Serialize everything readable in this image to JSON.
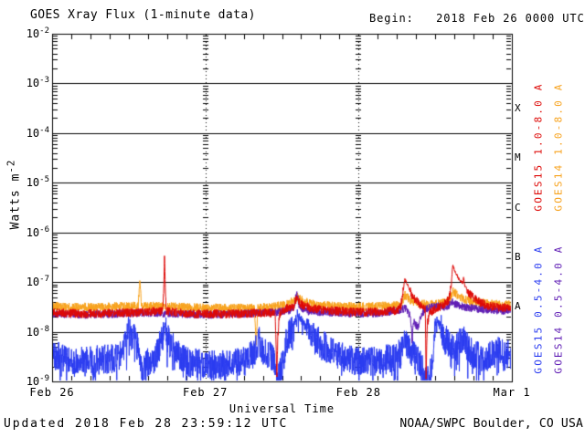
{
  "header": {
    "title": "GOES Xray Flux (1-minute data)",
    "begin_label": "Begin:   2018 Feb 26 0000 UTC"
  },
  "footer": {
    "updated": "Updated 2018 Feb 28 23:59:12 UTC",
    "source": "NOAA/SWPC Boulder, CO USA"
  },
  "chart_data": {
    "type": "line",
    "title": "GOES Xray Flux (1-minute data)",
    "xlabel": "Universal Time",
    "ylabel": "Watts m^-2",
    "ylabel_base": "Watts m",
    "ylabel_sup": "-2",
    "y_scale": "log",
    "ylim": [
      1e-09,
      0.01
    ],
    "y_tick_exponents": [
      -2,
      -3,
      -4,
      -5,
      -6,
      -7,
      -8,
      -9
    ],
    "x_range_hours": [
      0,
      72
    ],
    "x_start": "2018 Feb 26 0000 UTC",
    "x_ticks": [
      {
        "label": "Feb 26",
        "hour": 0
      },
      {
        "label": "Feb 27",
        "hour": 24
      },
      {
        "label": "Feb 28",
        "hour": 48
      },
      {
        "label": "Mar 1",
        "hour": 72
      }
    ],
    "day_gridlines_hours": [
      24,
      48
    ],
    "minor_tick_hours_step": 3,
    "axis_color": "#000000",
    "background": "#ffffff",
    "flare_classes": [
      {
        "label": "X",
        "range": [
          0.0001,
          0.001
        ]
      },
      {
        "label": "M",
        "range": [
          1e-05,
          0.0001
        ]
      },
      {
        "label": "C",
        "range": [
          1e-06,
          1e-05
        ]
      },
      {
        "label": "B",
        "range": [
          1e-07,
          1e-06
        ]
      },
      {
        "label": "A",
        "range": [
          1e-08,
          1e-07
        ]
      }
    ],
    "legend": [
      {
        "label": "GOES15 1.0-8.0 A",
        "color": "#dd0806",
        "column": 0,
        "row": 0
      },
      {
        "label": "GOES14 1.0-8.0 A",
        "color": "#f7a21c",
        "column": 1,
        "row": 0
      },
      {
        "label": "GOES15 0.5-4.0 A",
        "color": "#2a3bf0",
        "column": 0,
        "row": 1
      },
      {
        "label": "GOES14 0.5-4.0 A",
        "color": "#5e1cb4",
        "column": 1,
        "row": 1
      }
    ],
    "series": [
      {
        "name": "GOES14 1.0-8.0 A",
        "color": "#f7a21c",
        "noise_dex": 0.09,
        "noise_damp_above": 7e-08,
        "down_spike_prob": 0,
        "down_spike_dex": 0,
        "keypoints": [
          [
            0,
            3.2e-08
          ],
          [
            7,
            3.1e-08
          ],
          [
            13.5,
            3.3e-08
          ],
          [
            13.62,
            6e-08
          ],
          [
            13.74,
            1.08e-07
          ],
          [
            13.88,
            6e-08
          ],
          [
            14.0,
            3.3e-08
          ],
          [
            18,
            3.2e-08
          ],
          [
            24,
            3e-08
          ],
          [
            29,
            3e-08
          ],
          [
            31.7,
            3e-08
          ],
          [
            31.95,
            5e-09
          ],
          [
            32.2,
            3e-08
          ],
          [
            35,
            3.2e-08
          ],
          [
            37,
            3.6e-08
          ],
          [
            38.5,
            5e-08
          ],
          [
            39.5,
            4e-08
          ],
          [
            41.5,
            3.5e-08
          ],
          [
            45,
            3.2e-08
          ],
          [
            50,
            3.2e-08
          ],
          [
            54.5,
            3.4e-08
          ],
          [
            55.25,
            5.5e-08
          ],
          [
            56.2,
            4.3e-08
          ],
          [
            57.5,
            3.7e-08
          ],
          [
            59,
            3.5e-08
          ],
          [
            61.5,
            3.8e-08
          ],
          [
            62.4,
            4.5e-08
          ],
          [
            62.75,
            6.5e-08
          ],
          [
            63.6,
            5.2e-08
          ],
          [
            65,
            4.3e-08
          ],
          [
            66.5,
            3.9e-08
          ],
          [
            68.5,
            3.6e-08
          ],
          [
            72,
            3.5e-08
          ]
        ]
      },
      {
        "name": "GOES14 0.5-4.0 A",
        "color": "#5e1cb4",
        "noise_dex": 0.08,
        "noise_damp_above": 7e-08,
        "down_spike_prob": 0,
        "down_spike_dex": 0,
        "keypoints": [
          [
            0,
            2.3e-08
          ],
          [
            5,
            2.2e-08
          ],
          [
            10,
            2.3e-08
          ],
          [
            15,
            2.4e-08
          ],
          [
            20,
            2.3e-08
          ],
          [
            25,
            2.2e-08
          ],
          [
            30,
            2.3e-08
          ],
          [
            34,
            2.4e-08
          ],
          [
            37.3,
            2.7e-08
          ],
          [
            37.9,
            3.2e-08
          ],
          [
            38.3,
            6.2e-08
          ],
          [
            38.75,
            3.2e-08
          ],
          [
            40,
            2.6e-08
          ],
          [
            44,
            2.4e-08
          ],
          [
            48,
            2.3e-08
          ],
          [
            52,
            2.4e-08
          ],
          [
            54.8,
            2.8e-08
          ],
          [
            55.4,
            3.1e-08
          ],
          [
            55.9,
            2.3e-08
          ],
          [
            56.2,
            1.6e-08
          ],
          [
            56.38,
            6e-09
          ],
          [
            56.6,
            1.7e-08
          ],
          [
            57.0,
            1.35e-08
          ],
          [
            57.3,
            1.3e-08
          ],
          [
            57.7,
            1.9e-08
          ],
          [
            58.3,
            2.7e-08
          ],
          [
            59.2,
            3.2e-08
          ],
          [
            60.5,
            3.3e-08
          ],
          [
            61.8,
            3.1e-08
          ],
          [
            62.7,
            3.9e-08
          ],
          [
            63.8,
            3.3e-08
          ],
          [
            65.5,
            3e-08
          ],
          [
            67.5,
            2.8e-08
          ],
          [
            70,
            2.7e-08
          ],
          [
            72,
            2.6e-08
          ]
        ]
      },
      {
        "name": "GOES15 0.5-4.0 A",
        "color": "#2a3bf0",
        "noise_dex": 0.3,
        "noise_damp_above": 1.2e-08,
        "down_spike_prob": 0.08,
        "down_spike_dex": 0.5,
        "keypoints": [
          [
            0,
            3.5e-09
          ],
          [
            2,
            2.8e-09
          ],
          [
            5,
            2.5e-09
          ],
          [
            8,
            2.8e-09
          ],
          [
            10.5,
            3e-09
          ],
          [
            11.4,
            6e-09
          ],
          [
            11.95,
            1.05e-08
          ],
          [
            12.45,
            7.5e-09
          ],
          [
            12.9,
            8.5e-09
          ],
          [
            13.35,
            5e-09
          ],
          [
            13.9,
            3e-09
          ],
          [
            14.15,
            1.3e-09
          ],
          [
            14.6,
            2.2e-09
          ],
          [
            16.2,
            3e-09
          ],
          [
            16.8,
            5e-09
          ],
          [
            17.3,
            7e-09
          ],
          [
            17.6,
            1.5e-08
          ],
          [
            18.0,
            8e-09
          ],
          [
            18.6,
            6e-09
          ],
          [
            19.3,
            4e-09
          ],
          [
            21.5,
            2.4e-09
          ],
          [
            24,
            2.3e-09
          ],
          [
            27,
            2.2e-09
          ],
          [
            30,
            2.5e-09
          ],
          [
            31.5,
            3.5e-09
          ],
          [
            32.3,
            7e-09
          ],
          [
            32.9,
            4.5e-09
          ],
          [
            33.8,
            3.5e-09
          ],
          [
            34.8,
            2.8e-09
          ],
          [
            35.4,
            1.2e-09
          ],
          [
            36.1,
            2.2e-09
          ],
          [
            36.7,
            7e-09
          ],
          [
            37.5,
            1.05e-08
          ],
          [
            38.0,
            1.5e-08
          ],
          [
            38.4,
            2.3e-08
          ],
          [
            39.3,
            1.5e-08
          ],
          [
            40.2,
            1.05e-08
          ],
          [
            41.2,
            7.5e-09
          ],
          [
            42.3,
            5.5e-09
          ],
          [
            43.8,
            4e-09
          ],
          [
            45.5,
            3e-09
          ],
          [
            48,
            2.6e-09
          ],
          [
            51,
            2.6e-09
          ],
          [
            53.5,
            2.9e-09
          ],
          [
            54.7,
            4e-09
          ],
          [
            55.3,
            6e-09
          ],
          [
            56.2,
            4e-09
          ],
          [
            57.2,
            3e-09
          ],
          [
            57.9,
            1.8e-09
          ],
          [
            58.5,
            1.05e-09
          ],
          [
            59.1,
            1.1e-09
          ],
          [
            59.55,
            3e-09
          ],
          [
            60.0,
            1.15e-08
          ],
          [
            60.3,
            1.8e-08
          ],
          [
            60.7,
            1.35e-08
          ],
          [
            61.3,
            8.5e-09
          ],
          [
            62.2,
            5.5e-09
          ],
          [
            63.2,
            4.8e-09
          ],
          [
            64.1,
            6.5e-09
          ],
          [
            64.5,
            7.5e-09
          ],
          [
            65.1,
            4.5e-09
          ],
          [
            66,
            3.4e-09
          ],
          [
            67.5,
            3e-09
          ],
          [
            69,
            3.5e-09
          ],
          [
            70,
            4e-09
          ],
          [
            71,
            3.6e-09
          ],
          [
            72,
            3.3e-09
          ]
        ]
      },
      {
        "name": "GOES15 1.0-8.0 A",
        "color": "#dd0806",
        "noise_dex": 0.09,
        "noise_damp_above": 7e-08,
        "down_spike_prob": 0,
        "down_spike_dex": 0,
        "keypoints": [
          [
            0,
            2.4e-08
          ],
          [
            6,
            2.3e-08
          ],
          [
            12,
            2.4e-08
          ],
          [
            17.35,
            2.6e-08
          ],
          [
            17.5,
            9e-08
          ],
          [
            17.6,
            3.2e-07
          ],
          [
            17.72,
            9e-08
          ],
          [
            17.85,
            2.6e-08
          ],
          [
            22,
            2.3e-08
          ],
          [
            28,
            2.3e-08
          ],
          [
            33,
            2.4e-08
          ],
          [
            34.5,
            2.4e-08
          ],
          [
            34.95,
            2.2e-08
          ],
          [
            35.08,
            4e-09
          ],
          [
            35.2,
            1.5e-09
          ],
          [
            35.33,
            7e-09
          ],
          [
            35.6,
            2.3e-08
          ],
          [
            36.5,
            2.9e-08
          ],
          [
            37.8,
            3.2e-08
          ],
          [
            38.4,
            5e-08
          ],
          [
            38.9,
            3.6e-08
          ],
          [
            40.5,
            3e-08
          ],
          [
            43,
            2.7e-08
          ],
          [
            47,
            2.5e-08
          ],
          [
            51,
            2.5e-08
          ],
          [
            54.0,
            2.7e-08
          ],
          [
            54.6,
            3.2e-08
          ],
          [
            55.25,
            1.15e-07
          ],
          [
            55.7,
            8.5e-08
          ],
          [
            56.3,
            5.5e-08
          ],
          [
            57.2,
            4e-08
          ],
          [
            58.0,
            3.2e-08
          ],
          [
            58.45,
            2.9e-08
          ],
          [
            58.56,
            1e-09
          ],
          [
            58.75,
            1.4e-08
          ],
          [
            59.1,
            2.4e-08
          ],
          [
            60.0,
            2.9e-08
          ],
          [
            61.2,
            3.4e-08
          ],
          [
            62.1,
            4.4e-08
          ],
          [
            62.5,
            8e-08
          ],
          [
            62.72,
            2.2e-07
          ],
          [
            63.05,
            1.7e-07
          ],
          [
            63.7,
            1.15e-07
          ],
          [
            64.3,
            9.5e-08
          ],
          [
            64.45,
            1.3e-07
          ],
          [
            64.62,
            8.5e-08
          ],
          [
            65.3,
            6e-08
          ],
          [
            66.2,
            4.5e-08
          ],
          [
            67.3,
            3.7e-08
          ],
          [
            68.8,
            3.2e-08
          ],
          [
            70.5,
            3.05e-08
          ],
          [
            72,
            3e-08
          ]
        ]
      }
    ]
  }
}
